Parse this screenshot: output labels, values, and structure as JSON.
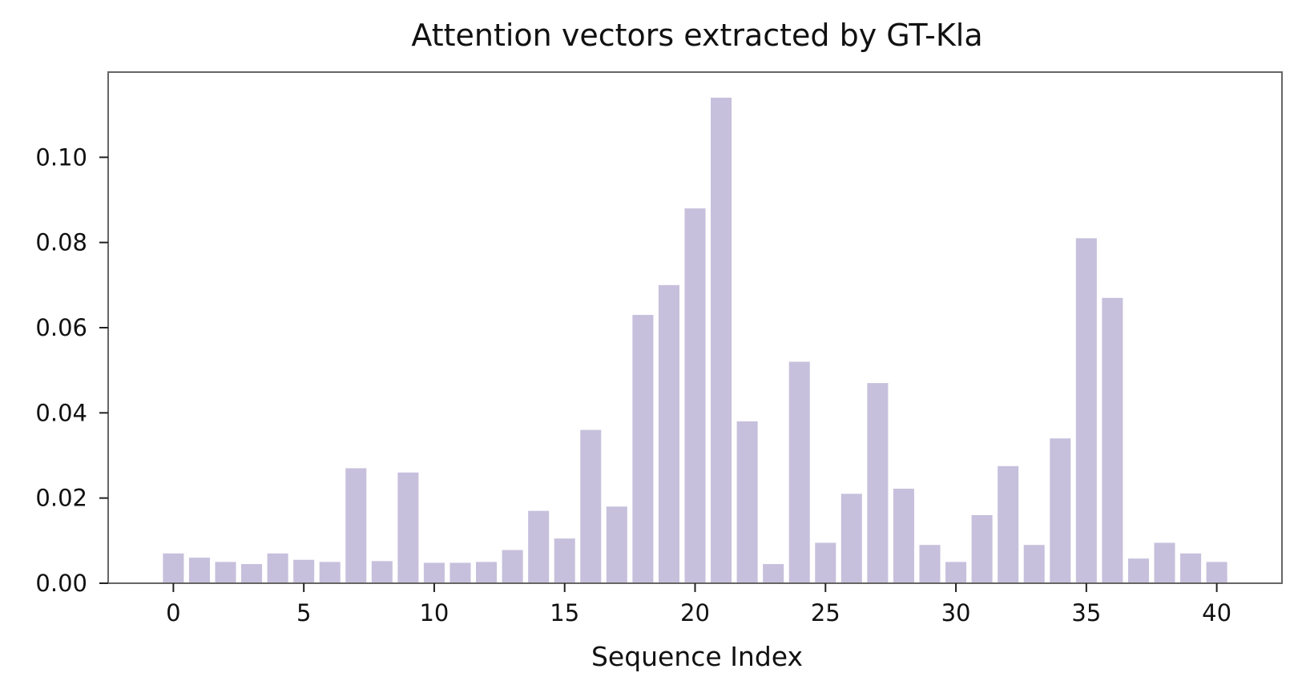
{
  "chart_data": {
    "type": "bar",
    "title": "Attention vectors extracted by GT-Kla",
    "xlabel": "Sequence Index",
    "ylabel": "",
    "bar_color": "#c7c0dc",
    "axis_color": "#666666",
    "grid": false,
    "xlim": [
      -2.5,
      42.5
    ],
    "ylim": [
      0,
      0.12
    ],
    "xticks": [
      0,
      5,
      10,
      15,
      20,
      25,
      30,
      35,
      40
    ],
    "yticks": [
      0.0,
      0.02,
      0.04,
      0.06,
      0.08,
      0.1
    ],
    "ytick_labels": [
      "0.00",
      "0.02",
      "0.04",
      "0.06",
      "0.08",
      "0.10"
    ],
    "categories": [
      0,
      1,
      2,
      3,
      4,
      5,
      6,
      7,
      8,
      9,
      10,
      11,
      12,
      13,
      14,
      15,
      16,
      17,
      18,
      19,
      20,
      21,
      22,
      23,
      24,
      25,
      26,
      27,
      28,
      29,
      30,
      31,
      32,
      33,
      34,
      35,
      36,
      37,
      38,
      39,
      40
    ],
    "values": [
      0.007,
      0.006,
      0.005,
      0.0045,
      0.007,
      0.0055,
      0.005,
      0.027,
      0.0052,
      0.026,
      0.0048,
      0.0048,
      0.005,
      0.0078,
      0.017,
      0.0105,
      0.036,
      0.018,
      0.063,
      0.07,
      0.088,
      0.114,
      0.038,
      0.0045,
      0.052,
      0.0095,
      0.021,
      0.047,
      0.0222,
      0.009,
      0.005,
      0.016,
      0.0275,
      0.009,
      0.034,
      0.081,
      0.067,
      0.0058,
      0.0095,
      0.007,
      0.005
    ]
  }
}
